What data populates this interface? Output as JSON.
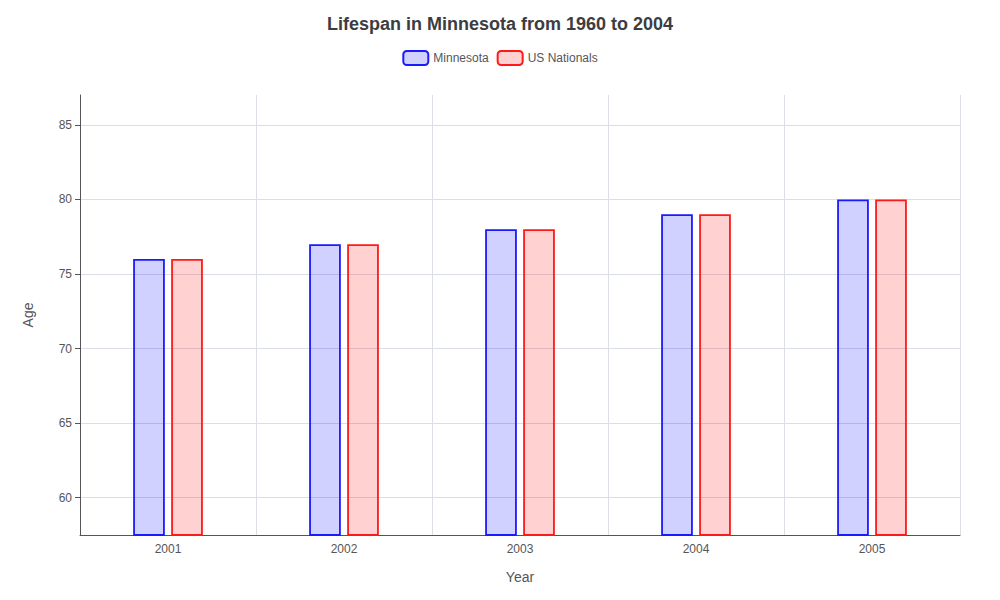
{
  "chart_data": {
    "type": "bar",
    "title": "Lifespan in Minnesota from 1960 to 2004",
    "x_label": "Year",
    "y_label": "Age",
    "categories": [
      "2001",
      "2002",
      "2003",
      "2004",
      "2005"
    ],
    "series": [
      {
        "name": "Minnesota",
        "color": "#1a1aff",
        "values": [
          76,
          77,
          78,
          79,
          80
        ]
      },
      {
        "name": "US Nationals",
        "color": "#ff1a1a",
        "values": [
          76,
          77,
          78,
          79,
          80
        ]
      }
    ],
    "ylim": [
      57.5,
      87
    ],
    "yticks": [
      60,
      65,
      70,
      75,
      80,
      85
    ],
    "grid": true,
    "legend": "top"
  }
}
